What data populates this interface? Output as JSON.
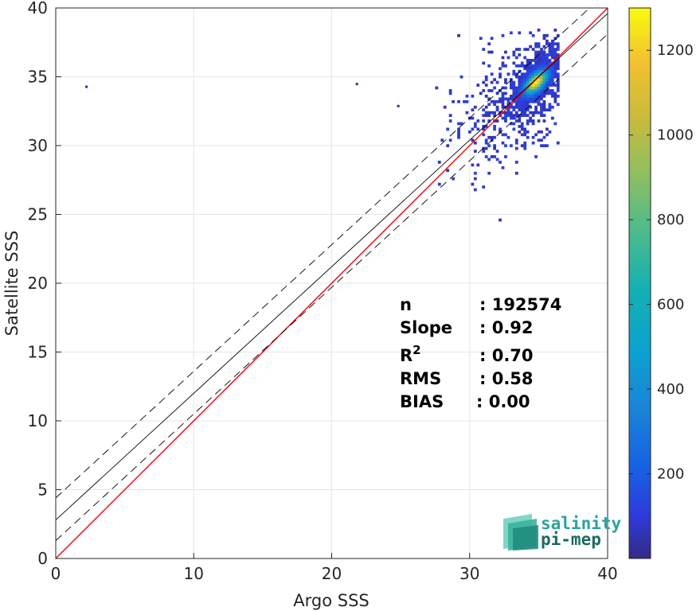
{
  "chart_data": {
    "type": "heatmap",
    "title": "",
    "xlabel": "Argo SSS",
    "ylabel": "Satellite SSS",
    "xlim": [
      0,
      40
    ],
    "ylim": [
      0,
      40
    ],
    "xticks": [
      "0",
      "10",
      "20",
      "30",
      "40"
    ],
    "yticks": [
      "0",
      "5",
      "10",
      "15",
      "20",
      "25",
      "30",
      "35",
      "40"
    ],
    "grid": true,
    "colorbar": {
      "range": [
        0,
        1300
      ],
      "ticks": [
        "200",
        "400",
        "600",
        "800",
        "1000",
        "1200"
      ],
      "colormap": "parula"
    },
    "density_peak": {
      "x": 34.7,
      "y": 34.5,
      "count": 1300
    },
    "density_cluster_extent": {
      "x": [
        27.5,
        36.5
      ],
      "y": [
        21.5,
        38.5
      ]
    },
    "outliers": [
      {
        "x": 2.2,
        "y": 34.3
      },
      {
        "x": 21.8,
        "y": 34.5
      },
      {
        "x": 24.8,
        "y": 32.9
      }
    ],
    "lines": [
      {
        "name": "1:1",
        "color": "#ff0000",
        "style": "solid",
        "intercept": 0,
        "slope": 1
      },
      {
        "name": "regression",
        "color": "#000000",
        "style": "solid",
        "intercept": 2.8,
        "slope": 0.92
      },
      {
        "name": "upper bound",
        "color": "#000000",
        "style": "dashed",
        "intercept": 4.4,
        "slope": 0.92
      },
      {
        "name": "lower bound",
        "color": "#000000",
        "style": "dashed",
        "intercept": 1.3,
        "slope": 0.92
      }
    ],
    "stats": [
      {
        "label": "n",
        "value": ": 192574"
      },
      {
        "label": "Slope",
        "value": ": 0.92"
      },
      {
        "label": "R",
        "sup": "2",
        "value": ": 0.70"
      },
      {
        "label": "RMS",
        "value": ": 0.58"
      },
      {
        "label": "BIAS",
        "value": ": 0.00"
      }
    ]
  },
  "logo": {
    "line1": "salinity",
    "line2": "pi-mep"
  },
  "colors": {
    "one_to_one": "#ff0000",
    "regression": "#000000",
    "logo_teal": "#26a69a",
    "logo_dark": "#1b6b5f"
  }
}
